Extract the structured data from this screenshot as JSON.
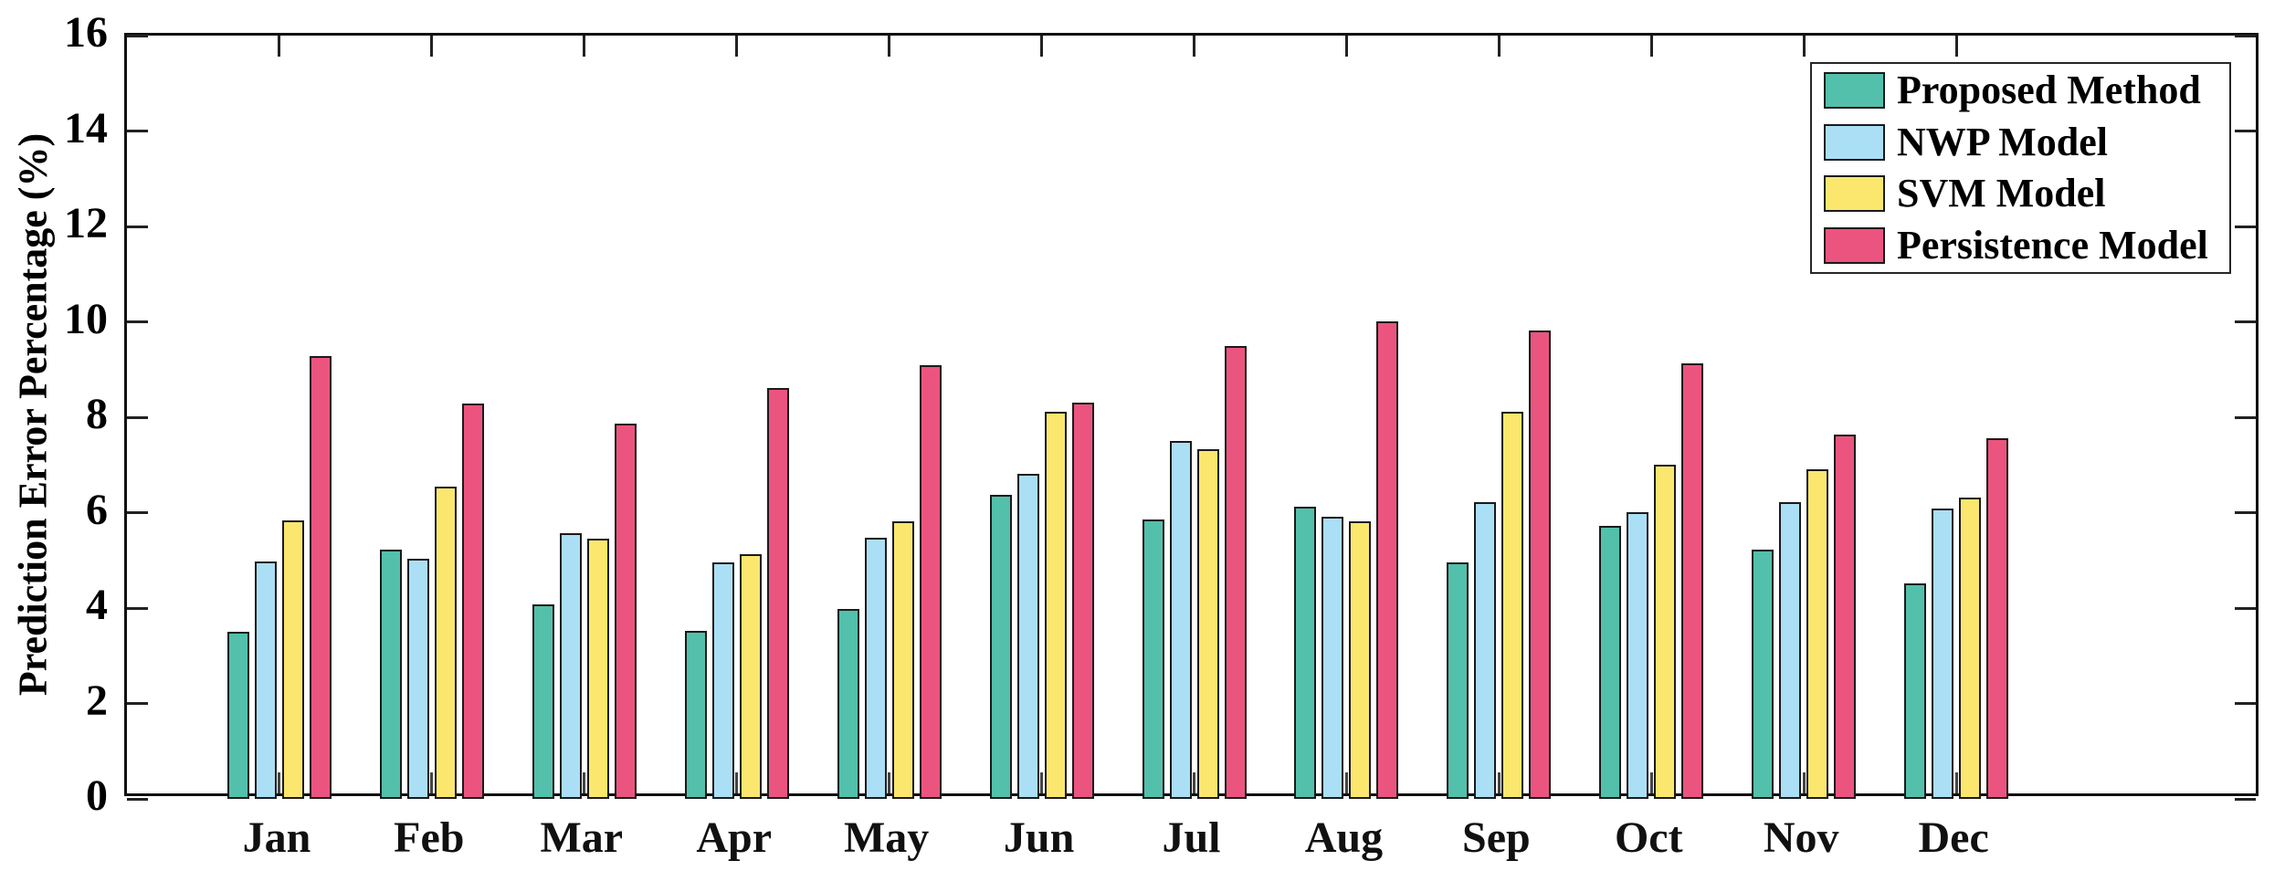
{
  "chart_data": {
    "type": "bar",
    "title": "",
    "xlabel": "",
    "ylabel": "Prediction Error Percentage (%)",
    "ylim": [
      0,
      16
    ],
    "ytick_step": 2,
    "xlim_month_units": [
      0,
      14
    ],
    "grid": false,
    "legend_position": "top-right",
    "background_color": "#ffffff",
    "axis_color": "#111111",
    "bar_edge_color": "#1a1a1a",
    "categories": [
      "Jan",
      "Feb",
      "Mar",
      "Apr",
      "May",
      "Jun",
      "Jul",
      "Aug",
      "Sep",
      "Oct",
      "Nov",
      "Dec"
    ],
    "series": [
      {
        "name": "Proposed Method",
        "color": "#53C0AB",
        "values": [
          3.5,
          5.22,
          4.08,
          3.52,
          3.98,
          6.37,
          5.86,
          6.12,
          4.96,
          5.72,
          5.22,
          4.52
        ]
      },
      {
        "name": "NWP Model",
        "color": "#ABDFF5",
        "values": [
          4.97,
          5.03,
          5.57,
          4.96,
          5.48,
          6.81,
          7.5,
          5.91,
          6.22,
          6.01,
          6.22,
          6.08
        ]
      },
      {
        "name": "SVM Model",
        "color": "#FBE76D",
        "values": [
          5.83,
          6.55,
          5.45,
          5.12,
          5.82,
          8.12,
          7.33,
          5.82,
          8.12,
          7.0,
          6.9,
          6.31
        ]
      },
      {
        "name": "Persistence Model",
        "color": "#EC5480",
        "values": [
          9.28,
          8.28,
          7.86,
          8.61,
          9.1,
          8.31,
          9.49,
          10.01,
          9.82,
          9.13,
          7.64,
          7.56
        ]
      }
    ]
  }
}
